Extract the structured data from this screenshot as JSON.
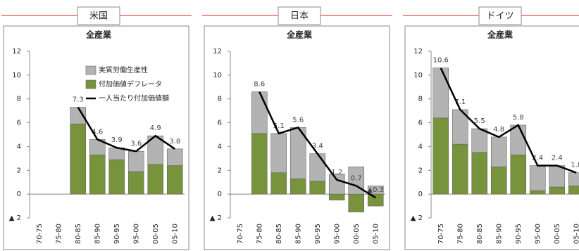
{
  "chart_data": [
    {
      "type": "bar_line",
      "region": "米国",
      "title": "全産業",
      "categories": [
        "70-75",
        "75-80",
        "80-85",
        "85-90",
        "90-95",
        "95-00",
        "00-05",
        "05-10"
      ],
      "series": [
        {
          "name": "実質労働生産性",
          "kind": "bar",
          "color": "#b3b3b3",
          "values": [
            null,
            null,
            1.4,
            1.3,
            1.0,
            1.7,
            2.4,
            1.4
          ]
        },
        {
          "name": "付加価値デフレータ",
          "kind": "bar",
          "color": "#77933c",
          "values": [
            null,
            null,
            5.9,
            3.3,
            2.9,
            1.9,
            2.5,
            2.4
          ]
        },
        {
          "name": "一人当たり付加価値額",
          "kind": "line",
          "color": "#000000",
          "values": [
            null,
            null,
            7.3,
            4.6,
            3.9,
            3.6,
            4.9,
            3.8
          ]
        }
      ],
      "ylim": [
        -2,
        12
      ],
      "yticks": [
        {
          "value": -2,
          "label": "▲ 2"
        },
        0,
        2,
        4,
        6,
        8,
        10,
        12
      ],
      "legend": "upper right"
    },
    {
      "type": "bar_line",
      "region": "日本",
      "title": "全産業",
      "categories": [
        "70-75",
        "75-80",
        "80-85",
        "85-90",
        "90-95",
        "95-00",
        "00-05",
        "05-10"
      ],
      "series": [
        {
          "kind": "bar",
          "color": "#b3b3b3",
          "values": [
            null,
            3.5,
            3.3,
            4.3,
            2.3,
            1.7,
            2.3,
            0.7
          ]
        },
        {
          "kind": "bar",
          "color": "#77933c",
          "values": [
            null,
            5.1,
            1.8,
            1.3,
            1.1,
            -0.5,
            -1.5,
            -1.0
          ]
        },
        {
          "kind": "line",
          "color": "#000000",
          "values": [
            null,
            8.6,
            5.1,
            5.6,
            3.4,
            1.2,
            0.7,
            -0.3
          ],
          "value_labels": [
            null,
            "8.6",
            "5.1",
            "5.6",
            "3.4",
            "1.2",
            "0.7",
            "▲0.3"
          ]
        }
      ],
      "ylim": [
        -2,
        12
      ],
      "yticks": [
        {
          "value": -2,
          "label": "▲ 2"
        },
        0,
        2,
        4,
        6,
        8,
        10,
        12
      ]
    },
    {
      "type": "bar_line",
      "region": "ドイツ",
      "title": "全産業",
      "categories": [
        "70-75",
        "75-80",
        "80-85",
        "85-90",
        "90-95",
        "95-00",
        "00-05",
        "05-10"
      ],
      "series": [
        {
          "kind": "bar",
          "color": "#b3b3b3",
          "values": [
            4.2,
            2.9,
            2.0,
            2.5,
            2.5,
            2.1,
            1.8,
            1.1
          ]
        },
        {
          "kind": "bar",
          "color": "#77933c",
          "values": [
            6.4,
            4.2,
            3.5,
            2.3,
            3.3,
            0.3,
            0.6,
            0.7
          ]
        },
        {
          "kind": "line",
          "color": "#000000",
          "values": [
            10.6,
            7.1,
            5.5,
            4.8,
            5.8,
            2.4,
            2.4,
            1.8
          ]
        }
      ],
      "ylim": [
        -2,
        12
      ],
      "yticks": [
        {
          "value": -2,
          "label": "▲ 2"
        },
        0,
        2,
        4,
        6,
        8,
        10,
        12
      ]
    }
  ]
}
